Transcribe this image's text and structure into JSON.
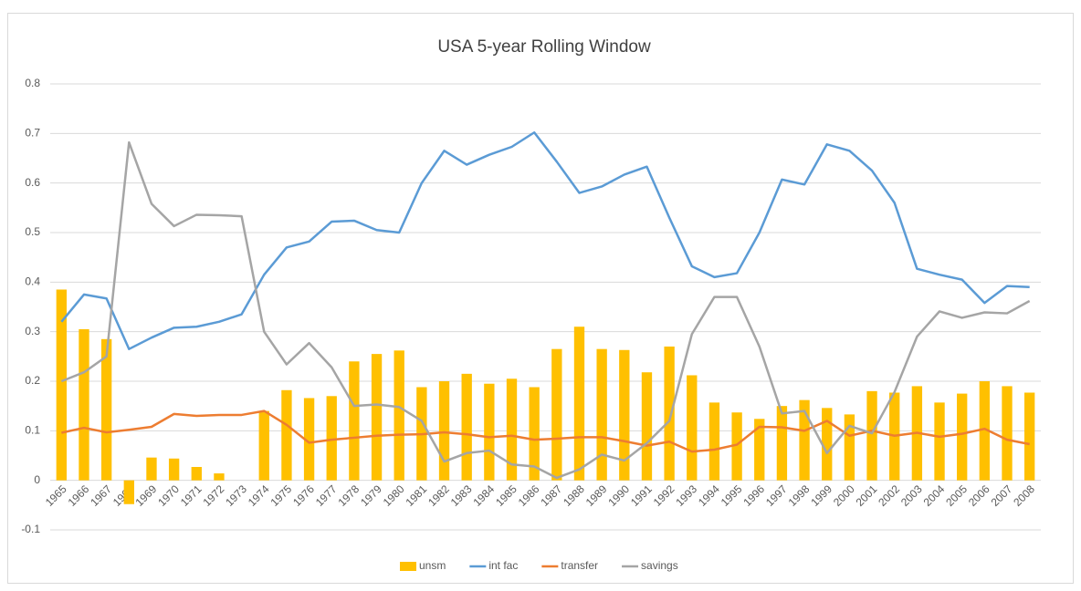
{
  "chart_data": {
    "type": "combo",
    "title": "USA 5-year Rolling Window",
    "categories": [
      "1965",
      "1966",
      "1967",
      "1968",
      "1969",
      "1970",
      "1971",
      "1972",
      "1973",
      "1974",
      "1975",
      "1976",
      "1977",
      "1978",
      "1979",
      "1980",
      "1981",
      "1982",
      "1983",
      "1984",
      "1985",
      "1986",
      "1987",
      "1988",
      "1989",
      "1990",
      "1991",
      "1992",
      "1993",
      "1994",
      "1995",
      "1996",
      "1997",
      "1998",
      "1999",
      "2000",
      "2001",
      "2002",
      "2003",
      "2004",
      "2005",
      "2006",
      "2007",
      "2008"
    ],
    "series": [
      {
        "name": "unsm",
        "type": "bar",
        "color": "#ffc000",
        "values": [
          0.385,
          0.305,
          0.285,
          -0.048,
          0.046,
          0.044,
          0.027,
          0.014,
          0,
          0.14,
          0.182,
          0.166,
          0.17,
          0.24,
          0.255,
          0.262,
          0.188,
          0.2,
          0.215,
          0.195,
          0.205,
          0.188,
          0.265,
          0.31,
          0.265,
          0.263,
          0.218,
          0.27,
          0.212,
          0.157,
          0.137,
          0.124,
          0.15,
          0.162,
          0.146,
          0.133,
          0.18,
          0.177,
          0.19,
          0.157,
          0.175,
          0.2,
          0.19,
          0.177
        ]
      },
      {
        "name": "int fac",
        "type": "line",
        "color": "#5b9bd5",
        "values": [
          0.32,
          0.375,
          0.367,
          0.265,
          0.288,
          0.308,
          0.31,
          0.32,
          0.335,
          0.415,
          0.47,
          0.482,
          0.522,
          0.524,
          0.505,
          0.5,
          0.6,
          0.665,
          0.637,
          0.657,
          0.673,
          0.702,
          0.643,
          0.58,
          0.593,
          0.617,
          0.633,
          0.53,
          0.432,
          0.41,
          0.418,
          0.5,
          0.607,
          0.597,
          0.678,
          0.665,
          0.625,
          0.56,
          0.427,
          0.415,
          0.405,
          0.358,
          0.392,
          0.39
        ]
      },
      {
        "name": "transfer",
        "type": "line",
        "color": "#ed7d31",
        "values": [
          0.096,
          0.106,
          0.097,
          0.102,
          0.108,
          0.134,
          0.13,
          0.132,
          0.132,
          0.14,
          0.112,
          0.076,
          0.082,
          0.086,
          0.09,
          0.092,
          0.093,
          0.097,
          0.093,
          0.087,
          0.09,
          0.082,
          0.084,
          0.087,
          0.087,
          0.079,
          0.07,
          0.078,
          0.058,
          0.062,
          0.072,
          0.108,
          0.107,
          0.1,
          0.12,
          0.09,
          0.1,
          0.09,
          0.096,
          0.088,
          0.094,
          0.104,
          0.082,
          0.073
        ]
      },
      {
        "name": "savings",
        "type": "line",
        "color": "#a5a5a5",
        "values": [
          0.2,
          0.218,
          0.25,
          0.682,
          0.558,
          0.513,
          0.536,
          0.535,
          0.533,
          0.3,
          0.234,
          0.277,
          0.228,
          0.15,
          0.153,
          0.148,
          0.12,
          0.038,
          0.055,
          0.06,
          0.032,
          0.028,
          0.005,
          0.022,
          0.052,
          0.04,
          0.075,
          0.12,
          0.295,
          0.37,
          0.37,
          0.27,
          0.135,
          0.14,
          0.055,
          0.11,
          0.095,
          0.178,
          0.29,
          0.341,
          0.328,
          0.339,
          0.337,
          0.362
        ]
      }
    ],
    "ylim": [
      -0.1,
      0.8
    ],
    "yticks": [
      -0.1,
      0,
      0.1,
      0.2,
      0.3,
      0.4,
      0.5,
      0.6,
      0.7,
      0.8
    ],
    "grid": true,
    "legend": "bottom"
  }
}
